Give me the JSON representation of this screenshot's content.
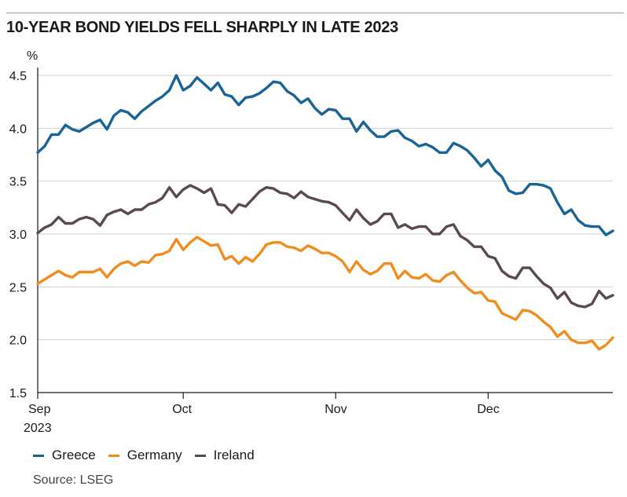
{
  "title": "10-YEAR BOND YIELDS FELL SHARPLY IN LATE 2023",
  "source": "Source: LSEG",
  "chart_data": {
    "type": "line",
    "title": "10-YEAR BOND YIELDS FELL SHARPLY IN LATE 2023",
    "ylabel": "%",
    "xlabel": "",
    "ylim": [
      1.5,
      4.5
    ],
    "yticks": [
      "1.5",
      "2.0",
      "2.5",
      "3.0",
      "3.5",
      "4.0",
      "4.5"
    ],
    "ytick_values": [
      1.5,
      2.0,
      2.5,
      3.0,
      3.5,
      4.0,
      4.5
    ],
    "xticks": [
      "Sep",
      "Oct",
      "Nov",
      "Dec"
    ],
    "xtick_year": "2023",
    "grid": true,
    "legend_position": "bottom-left",
    "x": [
      "Sep 1",
      "Sep 4",
      "Sep 5",
      "Sep 6",
      "Sep 7",
      "Sep 8",
      "Sep 11",
      "Sep 12",
      "Sep 13",
      "Sep 14",
      "Sep 15",
      "Sep 18",
      "Sep 19",
      "Sep 20",
      "Sep 21",
      "Sep 22",
      "Sep 25",
      "Sep 26",
      "Sep 27",
      "Sep 28",
      "Sep 29",
      "Oct 2",
      "Oct 3",
      "Oct 4",
      "Oct 5",
      "Oct 6",
      "Oct 9",
      "Oct 10",
      "Oct 11",
      "Oct 12",
      "Oct 13",
      "Oct 16",
      "Oct 17",
      "Oct 18",
      "Oct 19",
      "Oct 20",
      "Oct 23",
      "Oct 24",
      "Oct 25",
      "Oct 26",
      "Oct 27",
      "Oct 30",
      "Oct 31",
      "Nov 1",
      "Nov 2",
      "Nov 3",
      "Nov 6",
      "Nov 7",
      "Nov 8",
      "Nov 9",
      "Nov 10",
      "Nov 13",
      "Nov 14",
      "Nov 15",
      "Nov 16",
      "Nov 17",
      "Nov 20",
      "Nov 21",
      "Nov 22",
      "Nov 23",
      "Nov 24",
      "Nov 27",
      "Nov 28",
      "Nov 29",
      "Nov 30",
      "Dec 1",
      "Dec 4",
      "Dec 5",
      "Dec 6",
      "Dec 7",
      "Dec 8",
      "Dec 11",
      "Dec 12",
      "Dec 13",
      "Dec 14",
      "Dec 15",
      "Dec 18",
      "Dec 19",
      "Dec 20",
      "Dec 21",
      "Dec 22",
      "Dec 27",
      "Dec 28",
      "Dec 29"
    ],
    "series": [
      {
        "name": "Greece",
        "color": "#1a6396",
        "values": [
          3.77,
          3.83,
          3.94,
          3.94,
          4.03,
          3.99,
          3.97,
          4.01,
          4.05,
          4.08,
          3.99,
          4.12,
          4.17,
          4.15,
          4.09,
          4.16,
          4.21,
          4.26,
          4.3,
          4.36,
          4.5,
          4.36,
          4.4,
          4.48,
          4.42,
          4.36,
          4.43,
          4.32,
          4.3,
          4.22,
          4.29,
          4.3,
          4.33,
          4.38,
          4.44,
          4.43,
          4.35,
          4.31,
          4.24,
          4.28,
          4.19,
          4.13,
          4.18,
          4.17,
          4.09,
          4.09,
          3.97,
          4.06,
          3.98,
          3.92,
          3.92,
          3.97,
          3.98,
          3.91,
          3.88,
          3.83,
          3.85,
          3.82,
          3.77,
          3.77,
          3.86,
          3.83,
          3.79,
          3.72,
          3.64,
          3.7,
          3.6,
          3.54,
          3.41,
          3.38,
          3.39,
          3.47,
          3.47,
          3.46,
          3.43,
          3.3,
          3.19,
          3.23,
          3.13,
          3.08,
          3.07,
          3.07,
          2.99,
          3.03
        ]
      },
      {
        "name": "Germany",
        "color": "#f28c1e",
        "values": [
          2.53,
          2.57,
          2.61,
          2.65,
          2.61,
          2.59,
          2.64,
          2.64,
          2.64,
          2.67,
          2.59,
          2.67,
          2.72,
          2.74,
          2.7,
          2.74,
          2.73,
          2.8,
          2.81,
          2.84,
          2.95,
          2.85,
          2.92,
          2.97,
          2.93,
          2.89,
          2.9,
          2.76,
          2.79,
          2.72,
          2.78,
          2.74,
          2.81,
          2.9,
          2.92,
          2.92,
          2.88,
          2.87,
          2.84,
          2.89,
          2.86,
          2.82,
          2.82,
          2.79,
          2.74,
          2.64,
          2.74,
          2.66,
          2.62,
          2.65,
          2.72,
          2.72,
          2.58,
          2.65,
          2.59,
          2.58,
          2.62,
          2.56,
          2.55,
          2.61,
          2.64,
          2.56,
          2.49,
          2.44,
          2.45,
          2.37,
          2.36,
          2.25,
          2.22,
          2.19,
          2.28,
          2.27,
          2.23,
          2.17,
          2.12,
          2.03,
          2.08,
          2.0,
          1.97,
          1.97,
          1.99,
          1.91,
          1.95,
          2.02
        ]
      },
      {
        "name": "Ireland",
        "color": "#5a4a4a",
        "values": [
          3.01,
          3.06,
          3.09,
          3.16,
          3.1,
          3.1,
          3.14,
          3.16,
          3.14,
          3.08,
          3.18,
          3.21,
          3.23,
          3.19,
          3.23,
          3.23,
          3.28,
          3.3,
          3.34,
          3.44,
          3.35,
          3.42,
          3.46,
          3.43,
          3.39,
          3.43,
          3.28,
          3.27,
          3.2,
          3.28,
          3.26,
          3.33,
          3.4,
          3.44,
          3.43,
          3.39,
          3.38,
          3.34,
          3.4,
          3.35,
          3.33,
          3.31,
          3.3,
          3.27,
          3.2,
          3.13,
          3.23,
          3.15,
          3.09,
          3.12,
          3.19,
          3.19,
          3.06,
          3.09,
          3.05,
          3.07,
          3.07,
          3.0,
          3.0,
          3.07,
          3.09,
          2.98,
          2.94,
          2.88,
          2.88,
          2.79,
          2.77,
          2.65,
          2.6,
          2.58,
          2.68,
          2.68,
          2.6,
          2.53,
          2.49,
          2.39,
          2.45,
          2.35,
          2.32,
          2.31,
          2.34,
          2.46,
          2.39,
          2.42
        ]
      }
    ]
  }
}
